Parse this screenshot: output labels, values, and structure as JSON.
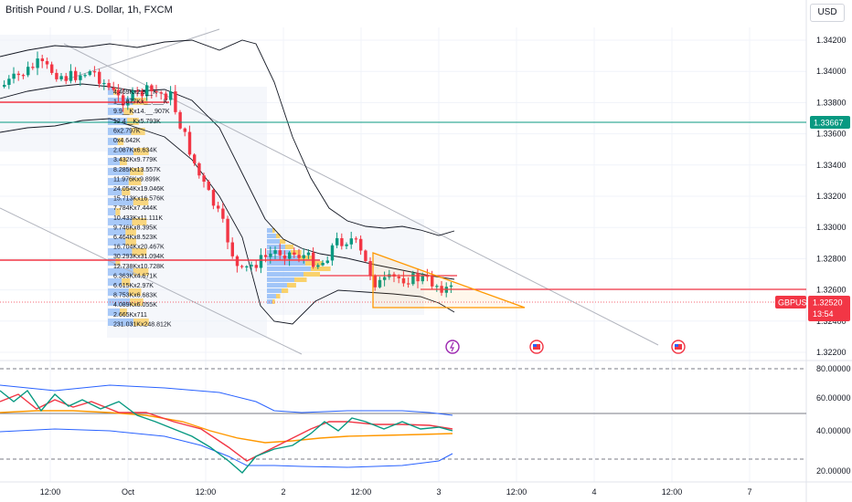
{
  "header": {
    "symbol_title": "British Pound / U.S. Dollar, 1h, FXCM",
    "currency": "USD"
  },
  "price_axis": {
    "ticks": [
      "1.34200",
      "1.34000",
      "1.33800",
      "1.33600",
      "1.33400",
      "1.33200",
      "1.33000",
      "1.32800",
      "1.32600",
      "1.32400",
      "1.32200"
    ],
    "hline_label": "1.33667",
    "hline_color": "#089981",
    "symbol_tag": "GBPUSD",
    "last_price": "1.32520",
    "countdown": "13:54",
    "tag_color": "#f23645"
  },
  "oscillator_axis": {
    "ticks": [
      "80.00000",
      "60.00000",
      "40.00000",
      "20.00000"
    ]
  },
  "time_axis": {
    "ticks": [
      "12:00",
      "Oct",
      "12:00",
      "2",
      "12:00",
      "3",
      "12:00",
      "4",
      "12:00",
      "7"
    ]
  },
  "volume_profile_labels": [
    "4.469Kx2.9__K",
    "1__.877Kx__.___K",
    "9.9__Kx14.__.907K",
    "12.4__Kx5.793K",
    "6x2.797K",
    "0x4.642K",
    "2.087Kx6.634K",
    "3.432Kx9.779K",
    "8.285Kx13.557K",
    "11.976Kx9.899K",
    "24.054Kx19.046K",
    "15.713Kx16.576K",
    "7.784Kx7.444K",
    "10.433Kx11.111K",
    "9.746Kx8.395K",
    "6.464Kx8.523K",
    "16.704Kx20.467K",
    "30.293Kx31.094K",
    "12.738Kx10.728K",
    "6.363Kx4.671K",
    "6.615Kx2.97K",
    "8.753Kx6.683K",
    "4.089Kx6.055K",
    "2.665Kx711",
    "231.031Kx248.812K"
  ],
  "colors": {
    "up": "#089981",
    "down": "#f23645",
    "grid": "#f0f3fa",
    "band": "#131722",
    "horizontal_red": "#f23645",
    "triangle": "#ff9800",
    "rsi": "#f23645",
    "stoch": "#089981",
    "ma": "#ff9800",
    "upper_band": "#2962ff"
  },
  "event_icons": [
    "lightning-icon",
    "us-flag-icon",
    "us-flag-icon"
  ]
}
